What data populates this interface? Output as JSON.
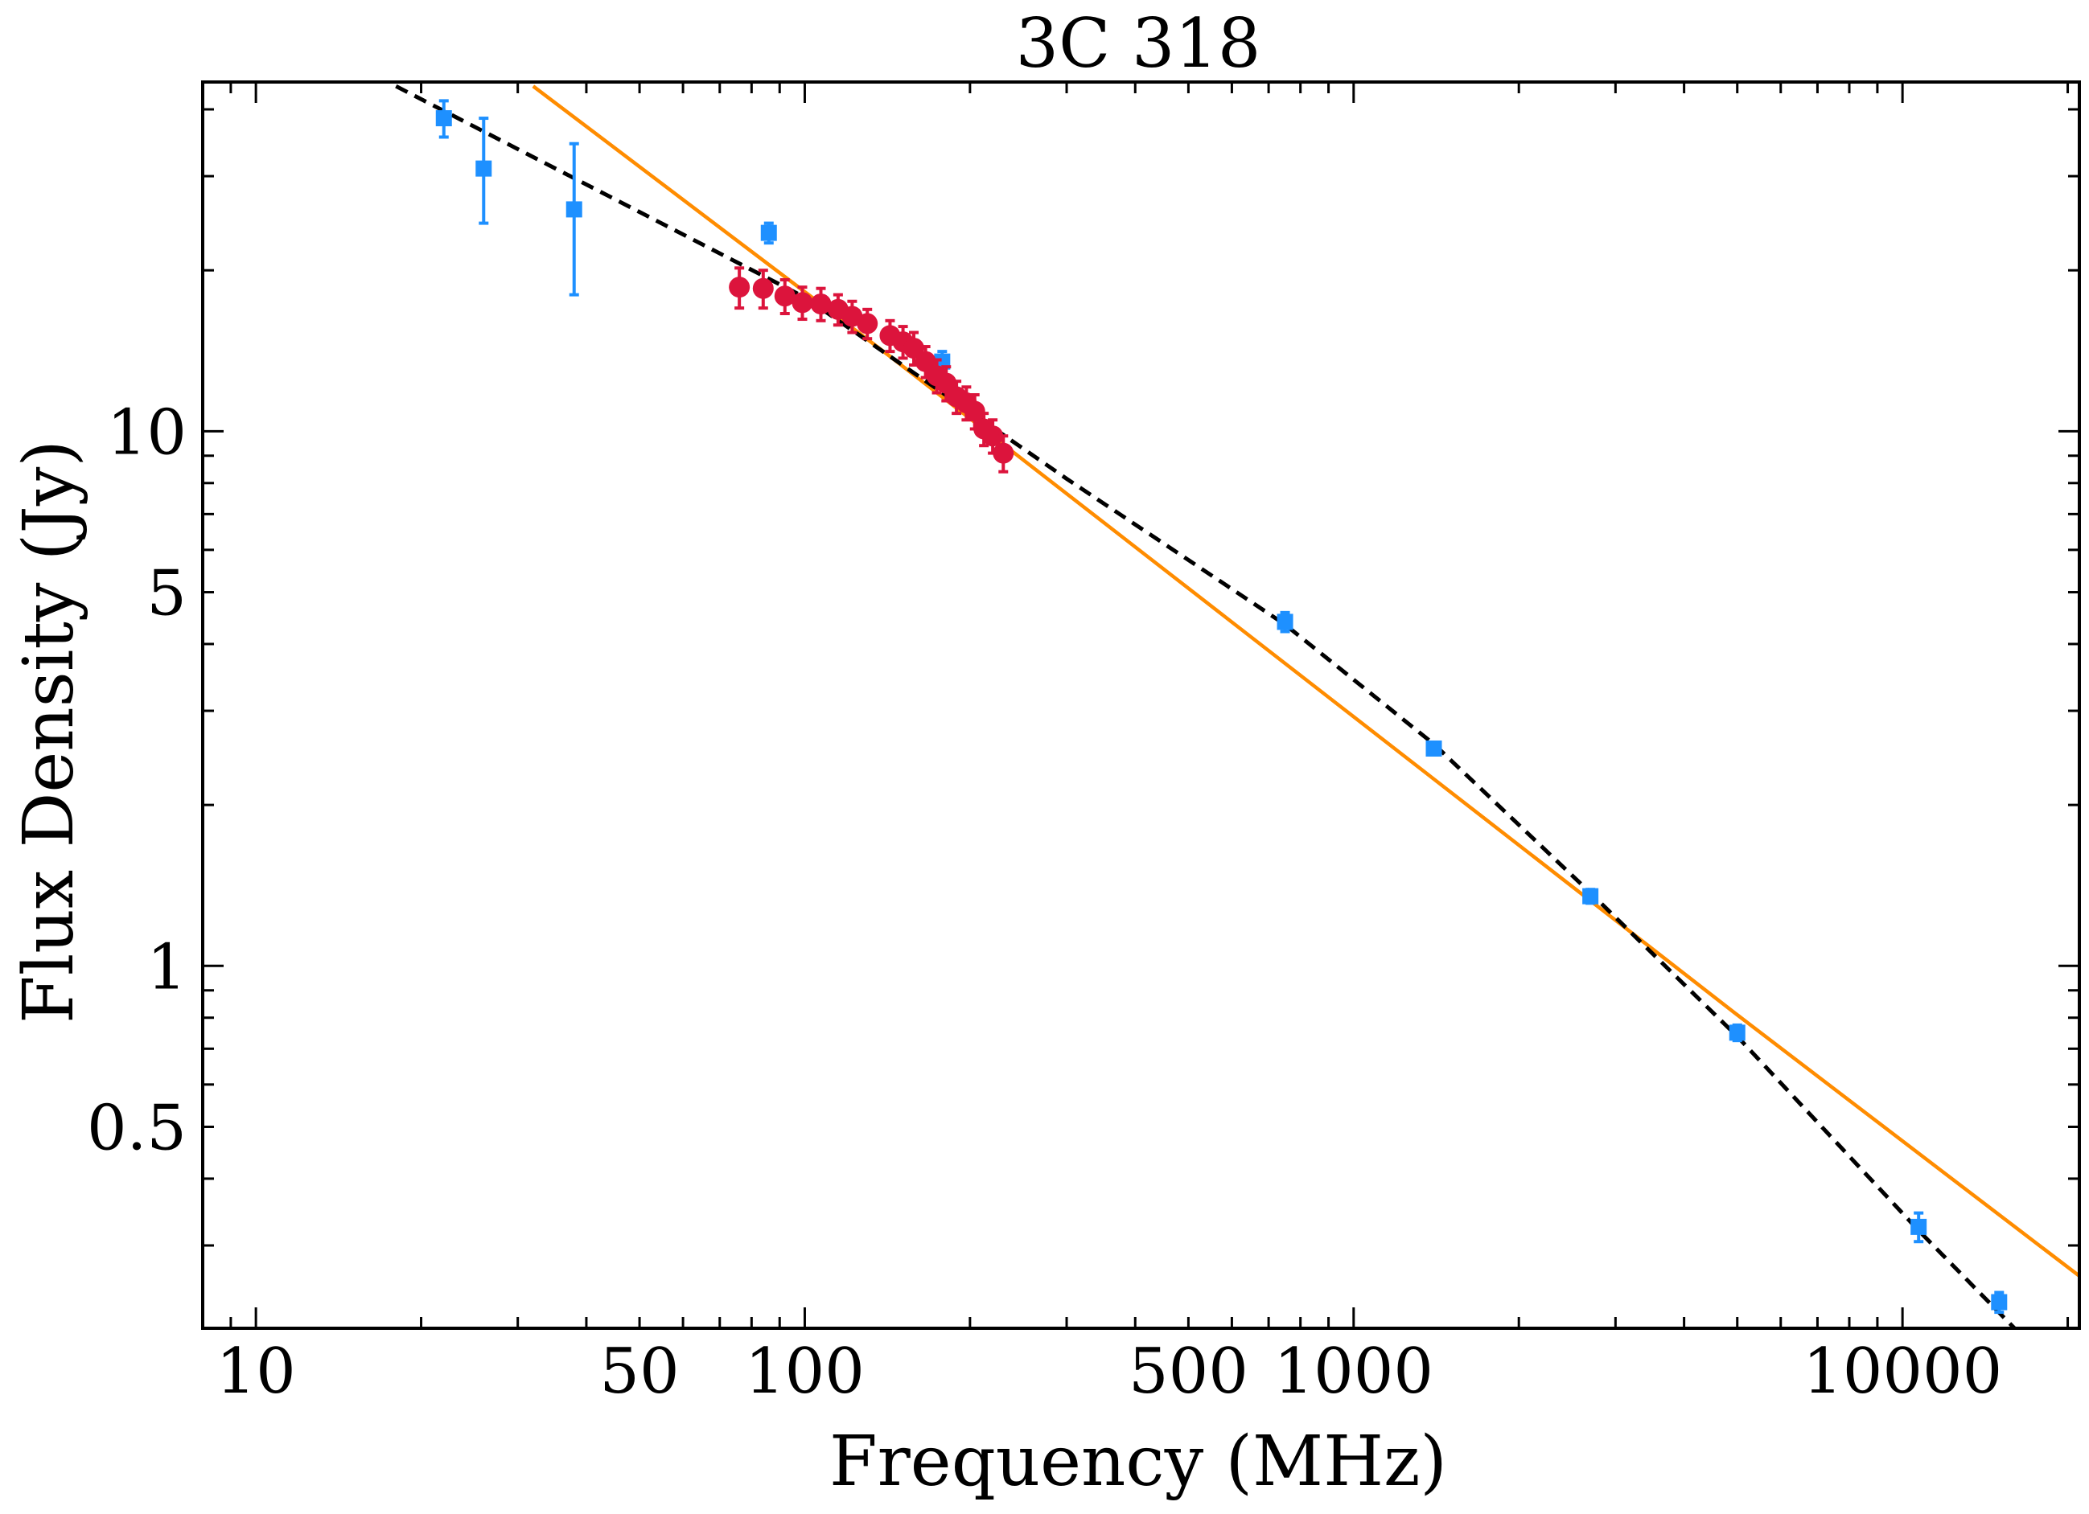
{
  "chart_data": {
    "type": "scatter",
    "title": "3C 318",
    "xlabel": "Frequency (MHz)",
    "ylabel": "Flux Density (Jy)",
    "x_scale": "log",
    "y_scale": "log",
    "xlim": [
      8,
      21000
    ],
    "ylim": [
      0.21,
      45
    ],
    "x_ticks": [
      10,
      50,
      100,
      500,
      1000,
      10000
    ],
    "x_tick_labels": [
      "10",
      "50",
      "100",
      "500",
      "1000",
      "10000"
    ],
    "y_ticks": [
      0.5,
      1,
      5,
      10
    ],
    "y_tick_labels": [
      "0.5",
      "1",
      "5",
      "10"
    ],
    "grid": false,
    "series": [
      {
        "marker": "square",
        "color": "#1e90ff",
        "points": [
          {
            "x": 22,
            "y": 38.5,
            "lo": 35.5,
            "hi": 41.5
          },
          {
            "x": 26,
            "y": 31.0,
            "lo": 24.5,
            "hi": 38.5
          },
          {
            "x": 38,
            "y": 26.0,
            "lo": 18.0,
            "hi": 34.5
          },
          {
            "x": 86,
            "y": 23.5,
            "lo": 22.5,
            "hi": 24.5
          },
          {
            "x": 178,
            "y": 13.5,
            "lo": 12.9,
            "hi": 14.1
          },
          {
            "x": 750,
            "y": 4.4,
            "lo": 4.22,
            "hi": 4.58
          },
          {
            "x": 1400,
            "y": 2.55,
            "lo": 2.48,
            "hi": 2.62
          },
          {
            "x": 2700,
            "y": 1.35,
            "lo": 1.31,
            "hi": 1.39
          },
          {
            "x": 5000,
            "y": 0.75,
            "lo": 0.725,
            "hi": 0.775
          },
          {
            "x": 10700,
            "y": 0.325,
            "lo": 0.305,
            "hi": 0.345
          },
          {
            "x": 15000,
            "y": 0.235,
            "lo": 0.225,
            "hi": 0.245
          }
        ]
      },
      {
        "marker": "circle",
        "color": "#dc143c",
        "points": [
          {
            "x": 76,
            "y": 18.6,
            "lo": 17.0,
            "hi": 20.2
          },
          {
            "x": 84,
            "y": 18.5,
            "lo": 17.0,
            "hi": 20.0
          },
          {
            "x": 92,
            "y": 17.9,
            "lo": 16.6,
            "hi": 19.2
          },
          {
            "x": 99,
            "y": 17.4,
            "lo": 16.2,
            "hi": 18.6
          },
          {
            "x": 107,
            "y": 17.3,
            "lo": 16.1,
            "hi": 18.5
          },
          {
            "x": 115,
            "y": 16.9,
            "lo": 15.8,
            "hi": 18.0
          },
          {
            "x": 122,
            "y": 16.4,
            "lo": 15.3,
            "hi": 17.5
          },
          {
            "x": 130,
            "y": 15.9,
            "lo": 14.9,
            "hi": 16.9
          },
          {
            "x": 143,
            "y": 15.1,
            "lo": 14.1,
            "hi": 16.1
          },
          {
            "x": 151,
            "y": 14.7,
            "lo": 13.7,
            "hi": 15.7
          },
          {
            "x": 158,
            "y": 14.3,
            "lo": 13.3,
            "hi": 15.3
          },
          {
            "x": 166,
            "y": 13.5,
            "lo": 12.6,
            "hi": 14.4
          },
          {
            "x": 174,
            "y": 12.7,
            "lo": 11.8,
            "hi": 13.6
          },
          {
            "x": 181,
            "y": 12.3,
            "lo": 11.4,
            "hi": 13.2
          },
          {
            "x": 189,
            "y": 11.6,
            "lo": 10.8,
            "hi": 12.4
          },
          {
            "x": 197,
            "y": 11.3,
            "lo": 10.5,
            "hi": 12.1
          },
          {
            "x": 204,
            "y": 10.9,
            "lo": 10.1,
            "hi": 11.7
          },
          {
            "x": 212,
            "y": 10.1,
            "lo": 9.4,
            "hi": 10.8
          },
          {
            "x": 220,
            "y": 9.8,
            "lo": 9.1,
            "hi": 10.5
          },
          {
            "x": 230,
            "y": 9.1,
            "lo": 8.4,
            "hi": 9.8
          }
        ]
      }
    ],
    "lines": [
      {
        "style": "solid",
        "color": "#ff8c00",
        "points": [
          [
            32,
            44.2
          ],
          [
            143,
            13.8
          ],
          [
            5000,
            0.81
          ],
          [
            21000,
            0.263
          ]
        ]
      },
      {
        "style": "dashed",
        "color": "#000000",
        "points": [
          [
            18,
            44.2
          ],
          [
            100,
            17.8
          ],
          [
            300,
            8.15
          ],
          [
            750,
            4.35
          ],
          [
            1400,
            2.6
          ],
          [
            2700,
            1.37
          ],
          [
            5000,
            0.738
          ],
          [
            10700,
            0.32
          ],
          [
            16000,
            0.21
          ]
        ]
      }
    ]
  }
}
